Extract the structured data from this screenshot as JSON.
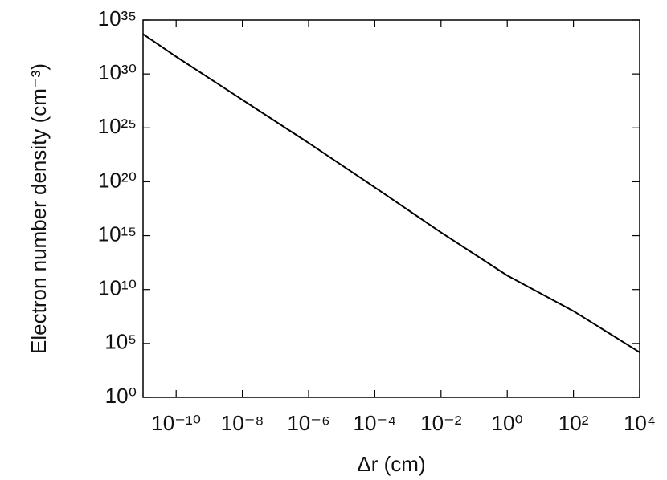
{
  "chart_data": {
    "type": "line",
    "x_label": "Δr (cm)",
    "y_label": "Electron number density (cm⁻³)",
    "x_log": true,
    "y_log": true,
    "xlim": [
      1e-11,
      10000.0
    ],
    "ylim": [
      1,
      1e+35
    ],
    "xticks": [
      {
        "value": 1e-10,
        "label": "10⁻¹⁰"
      },
      {
        "value": 1e-08,
        "label": "10⁻⁸"
      },
      {
        "value": 1e-06,
        "label": "10⁻⁶"
      },
      {
        "value": 0.0001,
        "label": "10⁻⁴"
      },
      {
        "value": 0.01,
        "label": "10⁻²"
      },
      {
        "value": 1,
        "label": "10⁰"
      },
      {
        "value": 100,
        "label": "10²"
      },
      {
        "value": 10000.0,
        "label": "10⁴"
      }
    ],
    "yticks": [
      {
        "value": 1,
        "label": "10⁰"
      },
      {
        "value": 100000.0,
        "label": "10⁵"
      },
      {
        "value": 10000000000.0,
        "label": "10¹⁰"
      },
      {
        "value": 1000000000000000.0,
        "label": "10¹⁵"
      },
      {
        "value": 1e+20,
        "label": "10²⁰"
      },
      {
        "value": 1e+25,
        "label": "10²⁵"
      },
      {
        "value": 1e+30,
        "label": "10³⁰"
      },
      {
        "value": 1e+35,
        "label": "10³⁵"
      }
    ],
    "x": [
      1e-11,
      1e-10,
      1e-08,
      1e-06,
      0.0001,
      0.01,
      1,
      100,
      10000.0
    ],
    "series": [
      {
        "color": "#000000",
        "values": [
          5e+33,
          4e+31,
          4e+27,
          4e+23,
          3e+19,
          2000000000000000.0,
          200000000000.0,
          100000000.0,
          15000.0
        ]
      }
    ]
  }
}
